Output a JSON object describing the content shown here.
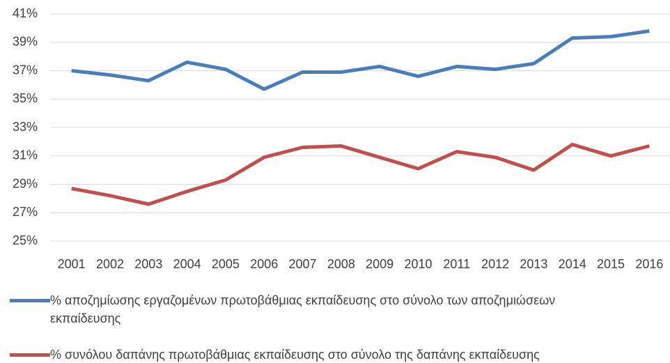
{
  "chart_data": {
    "type": "line",
    "categories": [
      "2001",
      "2002",
      "2003",
      "2004",
      "2005",
      "2006",
      "2007",
      "2008",
      "2009",
      "2010",
      "2011",
      "2012",
      "2013",
      "2014",
      "2015",
      "2016"
    ],
    "series": [
      {
        "name": "% αποζημίωσης εργαζομένων πρωτοβάθμιας εκπαίδευσης στο σύνολο των αποζημιώσεων εκπαίδευσης",
        "color": "#4a7ebb",
        "values": [
          37.0,
          36.7,
          36.3,
          37.6,
          37.1,
          35.7,
          36.9,
          36.9,
          37.3,
          36.6,
          37.3,
          37.1,
          37.5,
          39.3,
          39.4,
          39.8
        ]
      },
      {
        "name": "% συνόλου δαπάνης πρωτοβάθμιας εκπαίδευσης στο σύνολο της δαπάνης εκπαίδευσης",
        "color": "#c0504d",
        "values": [
          28.7,
          28.2,
          27.6,
          28.5,
          29.3,
          30.9,
          31.6,
          31.7,
          30.9,
          30.1,
          31.3,
          30.9,
          30.0,
          31.8,
          31.0,
          31.7
        ]
      }
    ],
    "ylim": [
      25,
      41
    ],
    "yticks": [
      {
        "value": 25,
        "label": "25%"
      },
      {
        "value": 27,
        "label": "27%"
      },
      {
        "value": 29,
        "label": "29%"
      },
      {
        "value": 31,
        "label": "31%"
      },
      {
        "value": 33,
        "label": "33%"
      },
      {
        "value": 35,
        "label": "35%"
      },
      {
        "value": 37,
        "label": "37%"
      },
      {
        "value": 39,
        "label": "39%"
      },
      {
        "value": 41,
        "label": "41%"
      }
    ],
    "grid": true
  }
}
